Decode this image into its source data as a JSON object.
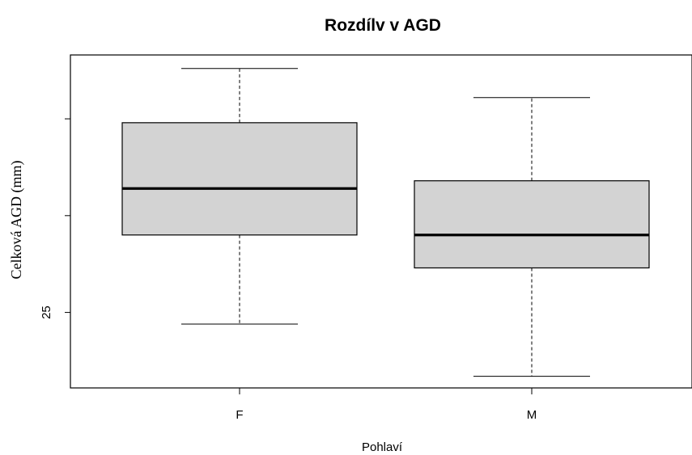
{
  "chart_data": {
    "type": "boxplot",
    "title": "Rozdílv v AGD",
    "xlabel": "Pohlaví",
    "ylabel": "Celková AGD (mm)",
    "categories": [
      "F",
      "M"
    ],
    "y_tick_labels": [
      "25",
      "",
      ""
    ],
    "y_ticks": [
      25,
      30,
      35
    ],
    "ylim": [
      21.1,
      38.3
    ],
    "grid": false,
    "box_fill": "#d3d3d3",
    "boxes": [
      {
        "category": "F",
        "whisker_low": 24.4,
        "q1": 29.0,
        "median": 31.4,
        "q3": 34.8,
        "whisker_high": 37.6
      },
      {
        "category": "M",
        "whisker_low": 21.7,
        "q1": 27.3,
        "median": 29.0,
        "q3": 31.8,
        "whisker_high": 36.1
      }
    ]
  }
}
